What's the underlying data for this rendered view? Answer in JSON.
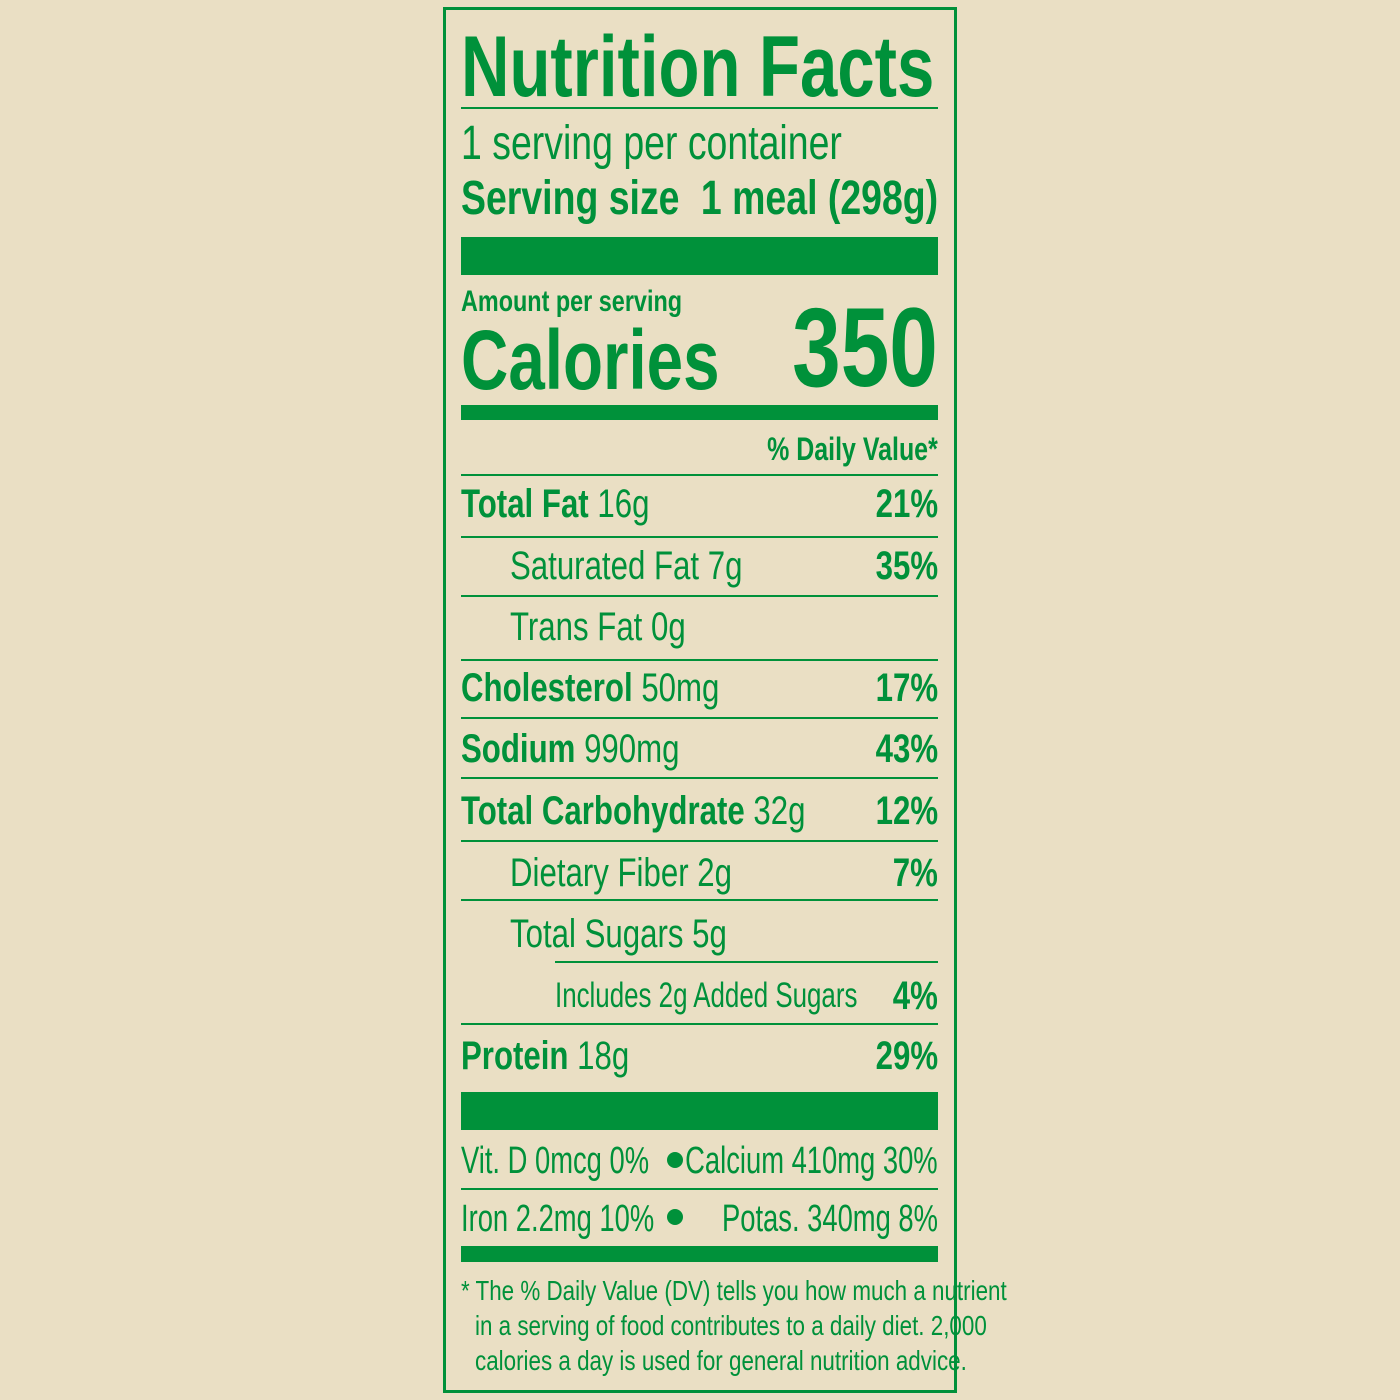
{
  "label": {
    "title": "Nutrition Facts",
    "servings": "1 serving per container",
    "serving_size_label": "Serving size",
    "serving_size_value": "1 meal (298g)",
    "amount_per_serving": "Amount per serving",
    "calories_label": "Calories",
    "calories_value": "350",
    "daily_value_header": "% Daily Value*",
    "rows": [
      {
        "name": "Total Fat",
        "amount": "16g",
        "dv": "21%"
      },
      {
        "name": "Saturated Fat",
        "amount": "7g",
        "dv": "35%"
      },
      {
        "name": "Trans Fat",
        "amount": "0g",
        "dv": ""
      },
      {
        "name": "Cholesterol",
        "amount": "50mg",
        "dv": "17%"
      },
      {
        "name": "Sodium",
        "amount": "990mg",
        "dv": "43%"
      },
      {
        "name": "Total Carbohydrate",
        "amount": "32g",
        "dv": "12%"
      },
      {
        "name": "Dietary Fiber",
        "amount": "2g",
        "dv": "7%"
      },
      {
        "name": "Total Sugars",
        "amount": "5g",
        "dv": ""
      },
      {
        "name": "Includes 2g Added Sugars",
        "amount": "",
        "dv": "4%"
      },
      {
        "name": "Protein",
        "amount": "18g",
        "dv": "29%"
      }
    ],
    "micros": [
      {
        "left": "Vit. D 0mcg 0%",
        "right": "Calcium 410mg 30%"
      },
      {
        "left": "Iron 2.2mg 10%",
        "right": "Potas. 340mg 8%"
      }
    ],
    "footnote": [
      "* The % Daily Value (DV) tells you how much a nutrient",
      "in a serving of food contributes to a daily diet. 2,000",
      "calories a day is used for general nutrition advice."
    ]
  },
  "colors": {
    "background": "#EADFC4",
    "ink": "#00913A"
  }
}
